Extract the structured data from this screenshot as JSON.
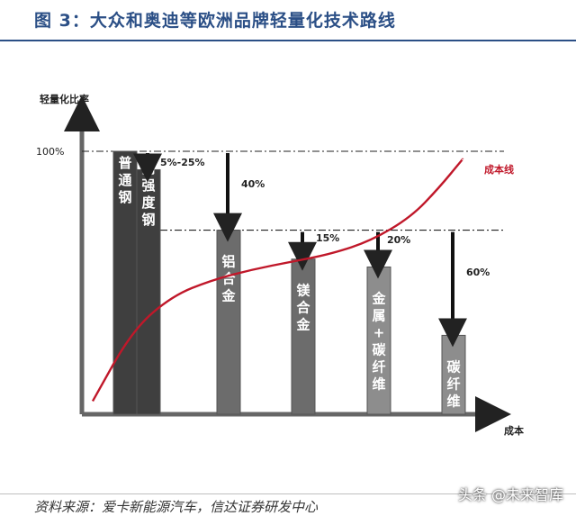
{
  "header": {
    "title": "图 3：大众和奥迪等欧洲品牌轻量化技术路线"
  },
  "chart_data": {
    "type": "bar",
    "ylabel": "轻量化比率",
    "xlabel": "成本",
    "ytick_labels": [
      "100%"
    ],
    "ylim": [
      0,
      100
    ],
    "categories": [
      "普通钢",
      "高强度钢",
      "铝合金",
      "镁合金",
      "金属+碳纤维",
      "碳纤维"
    ],
    "values": [
      100,
      93,
      70,
      59,
      56,
      30
    ],
    "reduction_labels": [
      "",
      "5%-25%",
      "40%",
      "15%",
      "20%",
      "60%"
    ],
    "series": [
      {
        "name": "成本线",
        "type": "line",
        "points": [
          [
            0,
            5
          ],
          [
            10,
            32
          ],
          [
            20,
            45
          ],
          [
            30,
            51
          ],
          [
            40,
            55
          ],
          [
            50,
            58
          ],
          [
            60,
            61
          ],
          [
            70,
            66
          ],
          [
            80,
            75
          ],
          [
            87,
            86
          ],
          [
            93,
            97
          ]
        ]
      }
    ],
    "colors": {
      "bar_dark": "#3f3f3f",
      "bar_mid": "#6c6c6c",
      "bar_light": "#8d8d8d",
      "cost_line": "#c0182a",
      "title": "#2b4f86"
    }
  },
  "footer": {
    "source": "资料来源：爱卡新能源汽车，信达证券研发中心"
  },
  "watermark": {
    "text": "头条 @未来智库"
  }
}
